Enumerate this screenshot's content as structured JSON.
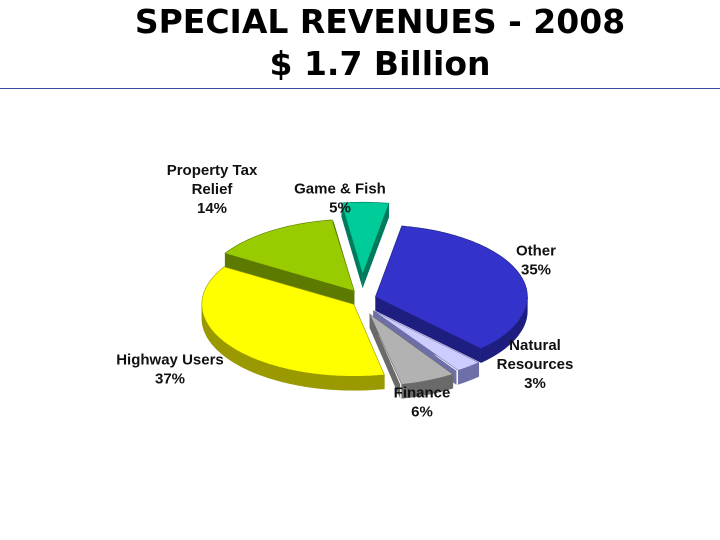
{
  "slide": {
    "title_line_1": "SPECIAL REVENUES - 2008",
    "title_line_2": "$ 1.7 Billion"
  },
  "chart_data": {
    "type": "pie",
    "title": "SPECIAL REVENUES - 2008",
    "subtitle": "$ 1.7 Billion",
    "exploded": true,
    "three_d": true,
    "slices": [
      {
        "label_lines": [
          "Other",
          "35%"
        ],
        "value": 35,
        "color": "#3333cc",
        "side_color": "#1e1e80"
      },
      {
        "label_lines": [
          "Natural",
          "Resources",
          "3%"
        ],
        "value": 3,
        "color": "#ccccff",
        "side_color": "#6e6ea8"
      },
      {
        "label_lines": [
          "Finance",
          "6%"
        ],
        "value": 6,
        "color": "#b2b2b2",
        "side_color": "#6a6a6a"
      },
      {
        "label_lines": [
          "Highway Users",
          "37%"
        ],
        "value": 37,
        "color": "#ffff00",
        "side_color": "#9a9a00"
      },
      {
        "label_lines": [
          "Property Tax",
          "Relief",
          "14%"
        ],
        "value": 14,
        "color": "#99cc00",
        "side_color": "#5c7a00"
      },
      {
        "label_lines": [
          "Game & Fish",
          "5%"
        ],
        "value": 5,
        "color": "#00cc99",
        "side_color": "#007a5c"
      }
    ]
  }
}
